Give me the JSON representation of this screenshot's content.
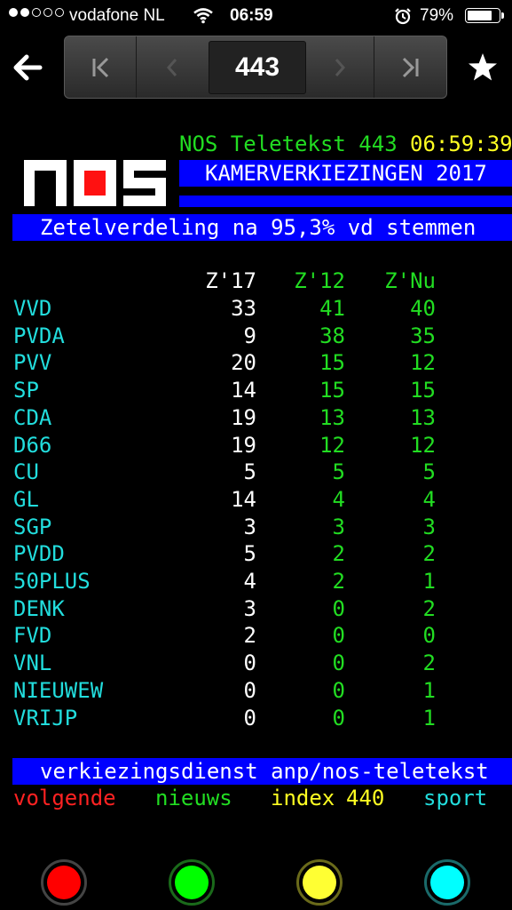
{
  "status_bar": {
    "carrier": "vodafone NL",
    "time": "06:59",
    "battery": "79%",
    "signal_bars_filled": 2,
    "signal_bars_total": 5,
    "battery_level": 0.79
  },
  "toolbar": {
    "page_number": "443"
  },
  "teletext": {
    "header": {
      "service": "NOS Teletekst 443",
      "clock": "06:59:39"
    },
    "title": "KAMERVERKIEZINGEN 2017",
    "subtitle": "Zetelverdeling na 95,3% vd stemmen",
    "columns": [
      "Z'17",
      "Z'12",
      "Z'Nu"
    ],
    "rows": [
      {
        "party": "VVD",
        "z17": "33",
        "z12": "41",
        "znu": "40"
      },
      {
        "party": "PVDA",
        "z17": "9",
        "z12": "38",
        "znu": "35"
      },
      {
        "party": "PVV",
        "z17": "20",
        "z12": "15",
        "znu": "12"
      },
      {
        "party": "SP",
        "z17": "14",
        "z12": "15",
        "znu": "15"
      },
      {
        "party": "CDA",
        "z17": "19",
        "z12": "13",
        "znu": "13"
      },
      {
        "party": "D66",
        "z17": "19",
        "z12": "12",
        "znu": "12"
      },
      {
        "party": "CU",
        "z17": "5",
        "z12": "5",
        "znu": "5"
      },
      {
        "party": "GL",
        "z17": "14",
        "z12": "4",
        "znu": "4"
      },
      {
        "party": "SGP",
        "z17": "3",
        "z12": "3",
        "znu": "3"
      },
      {
        "party": "PVDD",
        "z17": "5",
        "z12": "2",
        "znu": "2"
      },
      {
        "party": "50PLUS",
        "z17": "4",
        "z12": "2",
        "znu": "1"
      },
      {
        "party": "DENK",
        "z17": "3",
        "z12": "0",
        "znu": "2"
      },
      {
        "party": "FVD",
        "z17": "2",
        "z12": "0",
        "znu": "0"
      },
      {
        "party": "VNL",
        "z17": "0",
        "z12": "0",
        "znu": "2"
      },
      {
        "party": "NIEUWEW",
        "z17": "0",
        "z12": "0",
        "znu": "1"
      },
      {
        "party": "VRIJP",
        "z17": "0",
        "z12": "0",
        "znu": "1"
      }
    ],
    "footer": "verkiezingsdienst anp/nos-teletekst",
    "fastext": {
      "red": "volgende",
      "green": "nieuws",
      "yellow_label": "index",
      "yellow_page": "440",
      "cyan": "sport"
    }
  },
  "colors": {
    "teletext_red": "#ff2222",
    "teletext_green": "#22dd22",
    "teletext_yellow": "#ffff22",
    "teletext_cyan": "#22dddd",
    "teletext_blue": "#0000ff"
  },
  "buttons": [
    {
      "color": "red",
      "hex": "#ff0000"
    },
    {
      "color": "green",
      "hex": "#00ff00"
    },
    {
      "color": "yellow",
      "hex": "#ffff33"
    },
    {
      "color": "cyan",
      "hex": "#00ffff"
    }
  ]
}
